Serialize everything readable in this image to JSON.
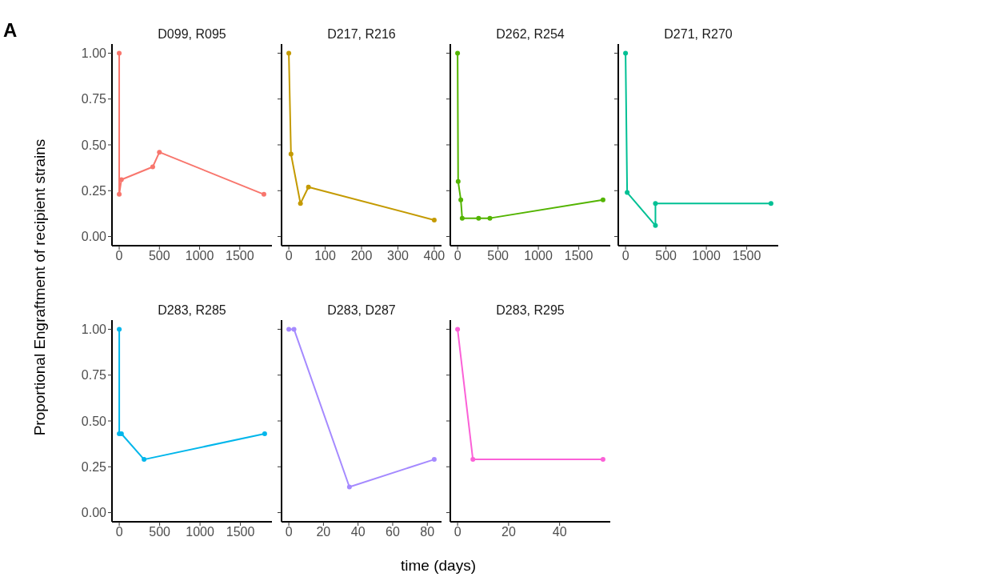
{
  "chart_data": [
    {
      "type": "line",
      "title": "D099, R095",
      "ylabel": "Proportional Engraftment of recipient strains",
      "annotations": [
        "A"
      ],
      "marker": "circle",
      "x": [
        0,
        0,
        27,
        417,
        500,
        1800
      ],
      "xlim": [
        -90,
        1900
      ],
      "xticks": [
        0,
        500,
        1000,
        1500
      ],
      "ylim": [
        -0.05,
        1.05
      ],
      "yticks": [
        {
          "value": 0,
          "label": "0.00"
        },
        0.25,
        {
          "value": 0.5,
          "label": "0.50"
        },
        0.75,
        {
          "value": 1,
          "label": "1.00"
        }
      ],
      "series": [
        {
          "color": "#f8766d",
          "values": [
            1.0,
            0.23,
            0.31,
            0.38,
            0.46,
            0.23
          ]
        }
      ]
    },
    {
      "type": "line",
      "title": "D217, R216",
      "marker": "circle",
      "tick_labels": "x",
      "x": [
        0,
        6,
        32,
        54,
        400
      ],
      "xlim": [
        -20,
        420
      ],
      "xticks": [
        0,
        100,
        200,
        300,
        400
      ],
      "ylim": [
        -0.05,
        1.05
      ],
      "yticks": [
        0.0,
        0.25,
        0.5,
        0.75,
        1.0
      ],
      "series": [
        {
          "color": "#c49a00",
          "values": [
            1.0,
            0.45,
            0.18,
            0.27,
            0.09
          ]
        }
      ]
    },
    {
      "type": "line",
      "title": "D262, R254",
      "marker": "circle",
      "tick_labels": "x",
      "x": [
        0,
        7,
        40,
        57,
        260,
        400,
        1800
      ],
      "xlim": [
        -90,
        1890
      ],
      "xticks": [
        0,
        500,
        1000,
        1500
      ],
      "ylim": [
        -0.05,
        1.05
      ],
      "yticks": [
        0.0,
        0.25,
        0.5,
        0.75,
        1.0
      ],
      "series": [
        {
          "color": "#53b400",
          "values": [
            1.0,
            0.3,
            0.2,
            0.1,
            0.1,
            0.1,
            0.2
          ]
        }
      ]
    },
    {
      "type": "line",
      "title": "D271, R270",
      "marker": "circle",
      "tick_labels": "x",
      "x": [
        0,
        20,
        370,
        370,
        1800
      ],
      "xlim": [
        -90,
        1890
      ],
      "xticks": [
        0,
        500,
        1000,
        1500
      ],
      "ylim": [
        -0.05,
        1.05
      ],
      "yticks": [
        0.0,
        0.25,
        0.5,
        0.75,
        1.0
      ],
      "series": [
        {
          "color": "#00c094",
          "values": [
            1.0,
            0.24,
            0.06,
            0.18,
            0.18
          ]
        }
      ]
    },
    {
      "type": "line",
      "title": "D283, R285",
      "marker": "circle",
      "x": [
        0,
        0,
        27,
        307,
        1800
      ],
      "xlim": [
        -90,
        1890
      ],
      "xticks": [
        0,
        500,
        1000,
        1500
      ],
      "ylim": [
        -0.05,
        1.05
      ],
      "yticks": [
        {
          "value": 0,
          "label": "0.00"
        },
        0.25,
        {
          "value": 0.5,
          "label": "0.50"
        },
        0.75,
        {
          "value": 1,
          "label": "1.00"
        }
      ],
      "series": [
        {
          "color": "#00b6eb",
          "values": [
            1.0,
            0.43,
            0.43,
            0.29,
            0.43
          ]
        }
      ]
    },
    {
      "type": "line",
      "title": "D283, D287",
      "xlabel": "time (days)",
      "marker": "circle",
      "tick_labels": "x",
      "x": [
        0,
        3,
        35,
        84
      ],
      "xlim": [
        -4.2,
        88.2
      ],
      "xticks": [
        0,
        20,
        40,
        60,
        80
      ],
      "ylim": [
        -0.05,
        1.05
      ],
      "yticks": [
        0.0,
        0.25,
        0.5,
        0.75,
        1.0
      ],
      "series": [
        {
          "color": "#a58aff",
          "values": [
            1.0,
            1.0,
            0.14,
            0.29
          ]
        }
      ]
    },
    {
      "type": "line",
      "title": "D283, R295",
      "marker": "circle",
      "tick_labels": "x",
      "x": [
        0,
        6,
        57
      ],
      "xlim": [
        -2.85,
        59.85
      ],
      "xticks": [
        0,
        20,
        40
      ],
      "ylim": [
        -0.05,
        1.05
      ],
      "yticks": [
        0.0,
        0.25,
        0.5,
        0.75,
        1.0
      ],
      "series": [
        {
          "color": "#fb61d7",
          "values": [
            1.0,
            0.29,
            0.29
          ]
        }
      ]
    }
  ]
}
